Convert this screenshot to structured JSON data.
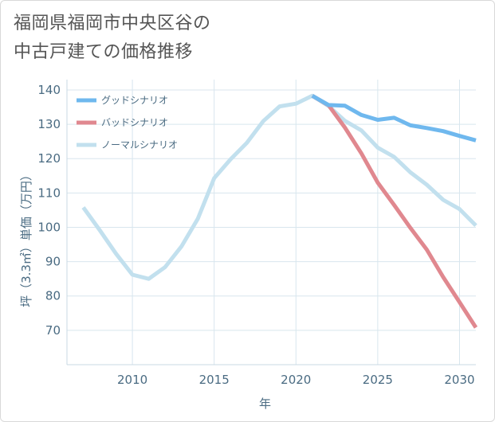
{
  "title": {
    "line1": "福岡県福岡市中央区谷の",
    "line2": "中古戸建ての価格推移"
  },
  "chart_data": {
    "type": "line",
    "title": "福岡県福岡市中央区谷の中古戸建ての価格推移",
    "xlabel": "年",
    "ylabel": "坪（3.3㎡）単価（万円）",
    "xlim": [
      2006,
      2031
    ],
    "ylim": [
      60,
      143
    ],
    "xticks": [
      2010,
      2015,
      2020,
      2025,
      2030
    ],
    "yticks": [
      70,
      80,
      90,
      100,
      110,
      120,
      130,
      140
    ],
    "grid": true,
    "legend_position": "top-left",
    "series": [
      {
        "name": "グッドシナリオ",
        "color": "#6fb8ee",
        "x": [
          2021,
          2022,
          2023,
          2024,
          2025,
          2026,
          2027,
          2028,
          2029,
          2030,
          2031
        ],
        "values": [
          138.3,
          135.6,
          135.4,
          132.7,
          131.3,
          131.9,
          129.7,
          128.9,
          128.0,
          126.6,
          125.3
        ]
      },
      {
        "name": "バッドシナリオ",
        "color": "#e0888f",
        "x": [
          2021,
          2022,
          2023,
          2024,
          2025,
          2026,
          2027,
          2028,
          2029,
          2030,
          2031
        ],
        "values": [
          138.3,
          135.5,
          129.0,
          121.5,
          113.0,
          106.5,
          99.8,
          93.5,
          85.5,
          78.2,
          70.8
        ]
      },
      {
        "name": "ノーマルシナリオ",
        "color": "#c2e0ee",
        "x": [
          2007,
          2008,
          2009,
          2010,
          2011,
          2012,
          2013,
          2014,
          2015,
          2016,
          2017,
          2018,
          2019,
          2020,
          2021,
          2022,
          2023,
          2024,
          2025,
          2026,
          2027,
          2028,
          2029,
          2030,
          2031
        ],
        "values": [
          105.8,
          99.2,
          92.3,
          86.2,
          85.0,
          88.4,
          94.4,
          102.5,
          114.3,
          119.8,
          124.6,
          130.9,
          135.2,
          136.0,
          138.3,
          135.3,
          131.0,
          128.2,
          123.2,
          120.5,
          116.0,
          112.4,
          108.0,
          105.3,
          100.5
        ]
      }
    ]
  }
}
